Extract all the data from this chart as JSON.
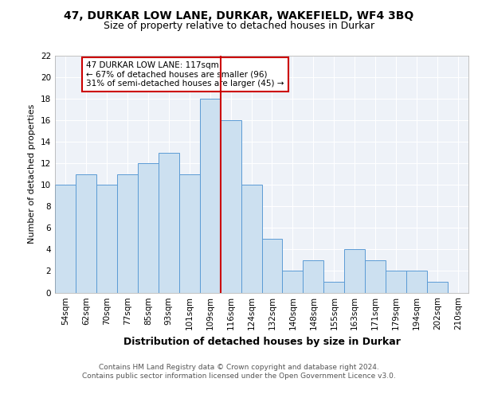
{
  "title1": "47, DURKAR LOW LANE, DURKAR, WAKEFIELD, WF4 3BQ",
  "title2": "Size of property relative to detached houses in Durkar",
  "xlabel": "Distribution of detached houses by size in Durkar",
  "ylabel": "Number of detached properties",
  "categories": [
    "54sqm",
    "62sqm",
    "70sqm",
    "77sqm",
    "85sqm",
    "93sqm",
    "101sqm",
    "109sqm",
    "116sqm",
    "124sqm",
    "132sqm",
    "140sqm",
    "148sqm",
    "155sqm",
    "163sqm",
    "171sqm",
    "179sqm",
    "194sqm",
    "202sqm",
    "210sqm"
  ],
  "values": [
    10,
    11,
    10,
    11,
    12,
    13,
    11,
    18,
    16,
    10,
    5,
    2,
    3,
    1,
    4,
    3,
    2,
    2,
    1,
    0
  ],
  "bar_color": "#cce0f0",
  "bar_edge_color": "#5b9bd5",
  "vline_color": "#cc0000",
  "annotation_text": "47 DURKAR LOW LANE: 117sqm\n← 67% of detached houses are smaller (96)\n31% of semi-detached houses are larger (45) →",
  "annotation_box_color": "#cc0000",
  "ylim": [
    0,
    22
  ],
  "yticks": [
    0,
    2,
    4,
    6,
    8,
    10,
    12,
    14,
    16,
    18,
    20,
    22
  ],
  "footer": "Contains HM Land Registry data © Crown copyright and database right 2024.\nContains public sector information licensed under the Open Government Licence v3.0.",
  "bg_color": "#eef2f8",
  "grid_color": "#ffffff",
  "title1_fontsize": 10,
  "title2_fontsize": 9,
  "xlabel_fontsize": 9,
  "ylabel_fontsize": 8,
  "tick_fontsize": 7.5,
  "footer_fontsize": 6.5
}
